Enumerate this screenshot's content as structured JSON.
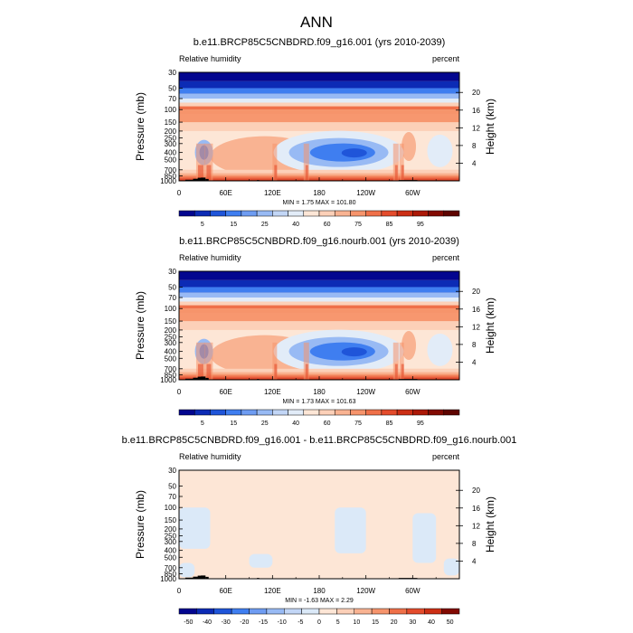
{
  "figure": {
    "title": "ANN"
  },
  "chart_data": [
    {
      "type": "heatmap",
      "title": "b.e11.BRCP85C5CNBDRD.f09_g16.001 (yrs 2010-2039)",
      "left_label": "Relative humidity",
      "right_label": "percent",
      "ylabel": "Pressure (mb)",
      "ylabel_right": "Height (km)",
      "xlabel": "",
      "x_ticks": [
        "0",
        "60E",
        "120E",
        "180",
        "120W",
        "60W"
      ],
      "y_ticks": [
        "30",
        "50",
        "70",
        "100",
        "150",
        "200",
        "250",
        "300",
        "400",
        "500",
        "700",
        "850",
        "1000"
      ],
      "y_ticks_right": [
        "20",
        "16",
        "12",
        "8",
        "4"
      ],
      "stats": "MIN =   1.75  MAX = 101.80",
      "colorbar_ticks": [
        "5",
        "15",
        "25",
        "40",
        "60",
        "75",
        "85",
        "95"
      ],
      "colors": [
        "#03068f",
        "#0c2bb5",
        "#1f55d9",
        "#3f7ef0",
        "#6e9cf2",
        "#98baf4",
        "#c2d6f6",
        "#e2ecf8",
        "#fde6d6",
        "#fcd0b8",
        "#f9b392",
        "#f6946c",
        "#ef7049",
        "#e44c2c",
        "#cc2f15",
        "#ac1907",
        "#820a02",
        "#5e0400"
      ]
    },
    {
      "type": "heatmap",
      "title": "b.e11.BRCP85C5CNBDRD.f09_g16.nourb.001 (yrs 2010-2039)",
      "left_label": "Relative humidity",
      "right_label": "percent",
      "ylabel": "Pressure (mb)",
      "ylabel_right": "Height (km)",
      "xlabel": "",
      "x_ticks": [
        "0",
        "60E",
        "120E",
        "180",
        "120W",
        "60W"
      ],
      "y_ticks": [
        "30",
        "50",
        "70",
        "100",
        "150",
        "200",
        "250",
        "300",
        "400",
        "500",
        "700",
        "850",
        "1000"
      ],
      "y_ticks_right": [
        "20",
        "16",
        "12",
        "8",
        "4"
      ],
      "stats": "MIN =   1.73  MAX = 101.63",
      "colorbar_ticks": [
        "5",
        "15",
        "25",
        "40",
        "60",
        "75",
        "85",
        "95"
      ],
      "colors": [
        "#03068f",
        "#0c2bb5",
        "#1f55d9",
        "#3f7ef0",
        "#6e9cf2",
        "#98baf4",
        "#c2d6f6",
        "#e2ecf8",
        "#fde6d6",
        "#fcd0b8",
        "#f9b392",
        "#f6946c",
        "#ef7049",
        "#e44c2c",
        "#cc2f15",
        "#ac1907",
        "#820a02",
        "#5e0400"
      ]
    },
    {
      "type": "heatmap",
      "title": "b.e11.BRCP85C5CNBDRD.f09_g16.001 - b.e11.BRCP85C5CNBDRD.f09_g16.nourb.001",
      "left_label": "Relative humidity",
      "right_label": "percent",
      "ylabel": "Pressure (mb)",
      "ylabel_right": "Height (km)",
      "xlabel": "",
      "x_ticks": [
        "0",
        "60E",
        "120E",
        "180",
        "120W",
        "60W"
      ],
      "y_ticks": [
        "30",
        "50",
        "70",
        "100",
        "150",
        "200",
        "250",
        "300",
        "400",
        "500",
        "700",
        "850",
        "1000"
      ],
      "y_ticks_right": [
        "20",
        "16",
        "12",
        "8",
        "4"
      ],
      "stats": "MIN =  -1.63  MAX =   2.29",
      "colorbar_ticks": [
        "-50",
        "-40",
        "-30",
        "-20",
        "-15",
        "-10",
        "-5",
        "0",
        "5",
        "10",
        "15",
        "20",
        "30",
        "40",
        "50"
      ],
      "colors": [
        "#03068f",
        "#0c2bb5",
        "#1f55d9",
        "#3f7ef0",
        "#6e9cf2",
        "#98baf4",
        "#c2d6f6",
        "#dbe9f8",
        "#fde6d6",
        "#fcd0b8",
        "#f9b392",
        "#f6946c",
        "#ef7049",
        "#e44c2c",
        "#cc2f15",
        "#820a02"
      ]
    }
  ]
}
